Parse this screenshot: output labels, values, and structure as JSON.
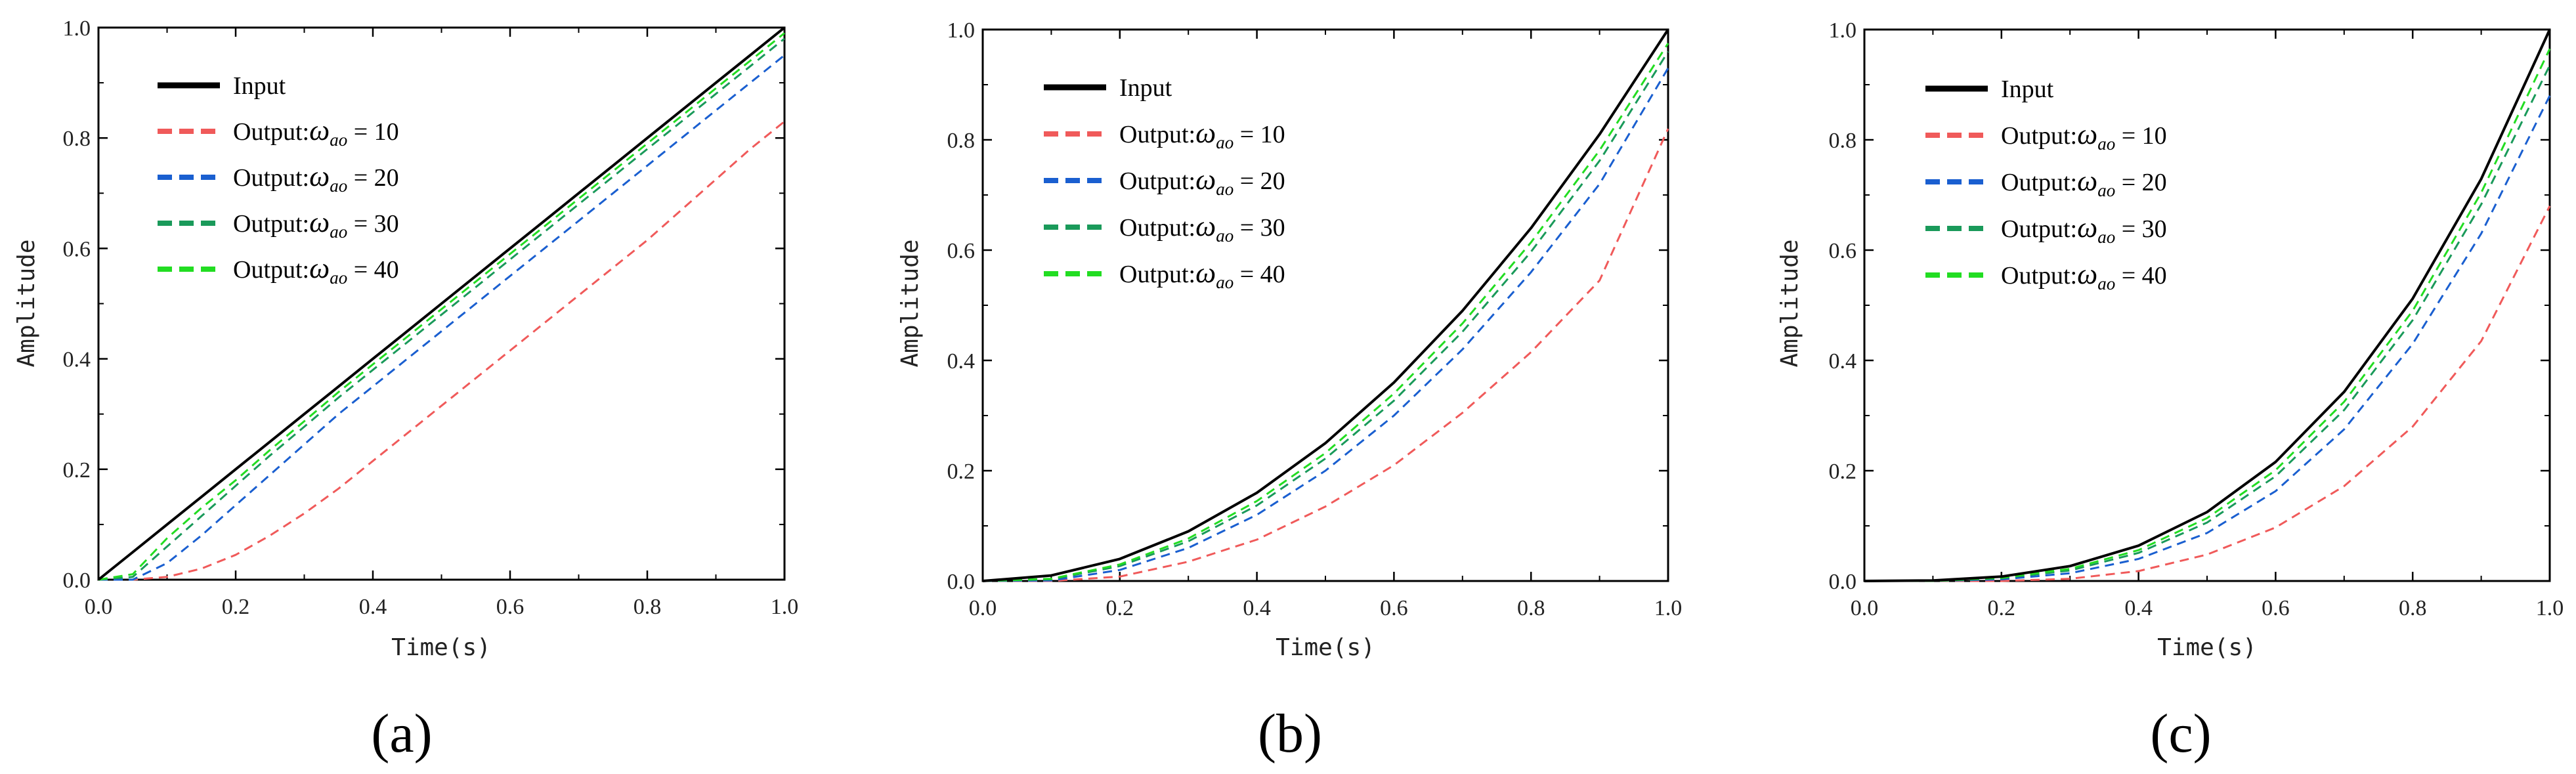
{
  "chart_data": [
    {
      "type": "line",
      "panel_label": "(a)",
      "xlabel": "Time(s)",
      "ylabel": "Amplitude",
      "xlim": [
        0,
        1
      ],
      "ylim": [
        0,
        1
      ],
      "xticks": [
        "0.0",
        "0.2",
        "0.4",
        "0.6",
        "0.8",
        "1.0"
      ],
      "yticks": [
        "0.0",
        "0.2",
        "0.4",
        "0.6",
        "0.8",
        "1.0"
      ],
      "legend_position": "top-left",
      "x": [
        0,
        0.05,
        0.1,
        0.15,
        0.2,
        0.25,
        0.3,
        0.35,
        0.4,
        0.45,
        0.5,
        0.55,
        0.6,
        0.65,
        0.7,
        0.75,
        0.8,
        0.85,
        0.9,
        0.95,
        1.0
      ],
      "series": [
        {
          "label": "Input",
          "color": "#000000",
          "style": "solid",
          "values": [
            0,
            0.05,
            0.1,
            0.15,
            0.2,
            0.25,
            0.3,
            0.35,
            0.4,
            0.45,
            0.5,
            0.55,
            0.6,
            0.65,
            0.7,
            0.75,
            0.8,
            0.85,
            0.9,
            0.95,
            1.0
          ]
        },
        {
          "label_prefix": "Output:",
          "symbol": "ω",
          "subscript": "ao",
          "label_suffix": " = 10",
          "color": "#f05a5a",
          "style": "dashed",
          "values": [
            0,
            0,
            0.005,
            0.02,
            0.045,
            0.08,
            0.12,
            0.165,
            0.215,
            0.265,
            0.315,
            0.365,
            0.415,
            0.465,
            0.515,
            0.565,
            0.615,
            0.67,
            0.725,
            0.78,
            0.83
          ]
        },
        {
          "label_prefix": "Output:",
          "symbol": "ω",
          "subscript": "ao",
          "label_suffix": " = 20",
          "color": "#1a5fd0",
          "style": "dashed",
          "values": [
            0,
            0,
            0.03,
            0.08,
            0.135,
            0.19,
            0.245,
            0.3,
            0.35,
            0.4,
            0.45,
            0.5,
            0.55,
            0.6,
            0.65,
            0.7,
            0.75,
            0.8,
            0.85,
            0.9,
            0.95
          ]
        },
        {
          "label_prefix": "Output:",
          "symbol": "ω",
          "subscript": "ao",
          "label_suffix": " = 30",
          "color": "#1a9a5a",
          "style": "dashed",
          "values": [
            0,
            0.005,
            0.06,
            0.115,
            0.17,
            0.225,
            0.277,
            0.33,
            0.38,
            0.43,
            0.48,
            0.53,
            0.58,
            0.63,
            0.68,
            0.73,
            0.78,
            0.83,
            0.88,
            0.93,
            0.98
          ]
        },
        {
          "label_prefix": "Output:",
          "symbol": "ω",
          "subscript": "ao",
          "label_suffix": " = 40",
          "color": "#22dd22",
          "style": "dashed",
          "values": [
            0,
            0.01,
            0.075,
            0.13,
            0.18,
            0.235,
            0.287,
            0.34,
            0.39,
            0.44,
            0.49,
            0.54,
            0.59,
            0.64,
            0.69,
            0.74,
            0.79,
            0.84,
            0.89,
            0.94,
            0.99
          ]
        }
      ]
    },
    {
      "type": "line",
      "panel_label": "(b)",
      "xlabel": "Time(s)",
      "ylabel": "Amplitude",
      "xlim": [
        0,
        1
      ],
      "ylim": [
        0,
        1
      ],
      "xticks": [
        "0.0",
        "0.2",
        "0.4",
        "0.6",
        "0.8",
        "1.0"
      ],
      "yticks": [
        "0.0",
        "0.2",
        "0.4",
        "0.6",
        "0.8",
        "1.0"
      ],
      "legend_position": "top-left",
      "x": [
        0,
        0.1,
        0.2,
        0.3,
        0.4,
        0.5,
        0.6,
        0.7,
        0.8,
        0.9,
        1.0
      ],
      "series": [
        {
          "label": "Input",
          "color": "#000000",
          "style": "solid",
          "values": [
            0,
            0.01,
            0.04,
            0.09,
            0.16,
            0.25,
            0.36,
            0.49,
            0.64,
            0.81,
            1.0
          ]
        },
        {
          "label_prefix": "Output:",
          "symbol": "ω",
          "subscript": "ao",
          "label_suffix": " = 10",
          "color": "#f05a5a",
          "style": "dashed",
          "values": [
            0,
            0,
            0.008,
            0.035,
            0.075,
            0.135,
            0.21,
            0.305,
            0.415,
            0.545,
            0.82
          ]
        },
        {
          "label_prefix": "Output:",
          "symbol": "ω",
          "subscript": "ao",
          "label_suffix": " = 20",
          "color": "#1a5fd0",
          "style": "dashed",
          "values": [
            0,
            0.001,
            0.02,
            0.06,
            0.12,
            0.2,
            0.3,
            0.42,
            0.56,
            0.72,
            0.93
          ]
        },
        {
          "label_prefix": "Output:",
          "symbol": "ω",
          "subscript": "ao",
          "label_suffix": " = 30",
          "color": "#1a9a5a",
          "style": "dashed",
          "values": [
            0,
            0.003,
            0.027,
            0.072,
            0.137,
            0.222,
            0.327,
            0.452,
            0.597,
            0.762,
            0.96
          ]
        },
        {
          "label_prefix": "Output:",
          "symbol": "ω",
          "subscript": "ao",
          "label_suffix": " = 40",
          "color": "#22dd22",
          "style": "dashed",
          "values": [
            0,
            0.004,
            0.03,
            0.077,
            0.145,
            0.232,
            0.34,
            0.467,
            0.614,
            0.781,
            0.975
          ]
        }
      ]
    },
    {
      "type": "line",
      "panel_label": "(c)",
      "xlabel": "Time(s)",
      "ylabel": "Amplitude",
      "xlim": [
        0,
        1
      ],
      "ylim": [
        0,
        1
      ],
      "xticks": [
        "0.0",
        "0.2",
        "0.4",
        "0.6",
        "0.8",
        "1.0"
      ],
      "yticks": [
        "0.0",
        "0.2",
        "0.4",
        "0.6",
        "0.8",
        "1.0"
      ],
      "legend_position": "top-left",
      "x": [
        0,
        0.1,
        0.2,
        0.3,
        0.4,
        0.5,
        0.6,
        0.7,
        0.8,
        0.9,
        1.0
      ],
      "series": [
        {
          "label": "Input",
          "color": "#000000",
          "style": "solid",
          "values": [
            0,
            0.001,
            0.008,
            0.027,
            0.064,
            0.125,
            0.216,
            0.343,
            0.512,
            0.729,
            1.0
          ]
        },
        {
          "label_prefix": "Output:",
          "symbol": "ω",
          "subscript": "ao",
          "label_suffix": " = 10",
          "color": "#f05a5a",
          "style": "dashed",
          "values": [
            0,
            0,
            0,
            0.004,
            0.018,
            0.048,
            0.097,
            0.172,
            0.28,
            0.435,
            0.68
          ]
        },
        {
          "label_prefix": "Output:",
          "symbol": "ω",
          "subscript": "ao",
          "label_suffix": " = 20",
          "color": "#1a5fd0",
          "style": "dashed",
          "values": [
            0,
            0,
            0.003,
            0.014,
            0.04,
            0.087,
            0.163,
            0.275,
            0.43,
            0.63,
            0.88
          ]
        },
        {
          "label_prefix": "Output:",
          "symbol": "ω",
          "subscript": "ao",
          "label_suffix": " = 30",
          "color": "#1a9a5a",
          "style": "dashed",
          "values": [
            0,
            0,
            0.005,
            0.019,
            0.051,
            0.106,
            0.19,
            0.31,
            0.473,
            0.683,
            0.935
          ]
        },
        {
          "label_prefix": "Output:",
          "symbol": "ω",
          "subscript": "ao",
          "label_suffix": " = 40",
          "color": "#22dd22",
          "style": "dashed",
          "values": [
            0,
            0,
            0.006,
            0.022,
            0.056,
            0.114,
            0.201,
            0.325,
            0.49,
            0.704,
            0.965
          ]
        }
      ]
    }
  ]
}
